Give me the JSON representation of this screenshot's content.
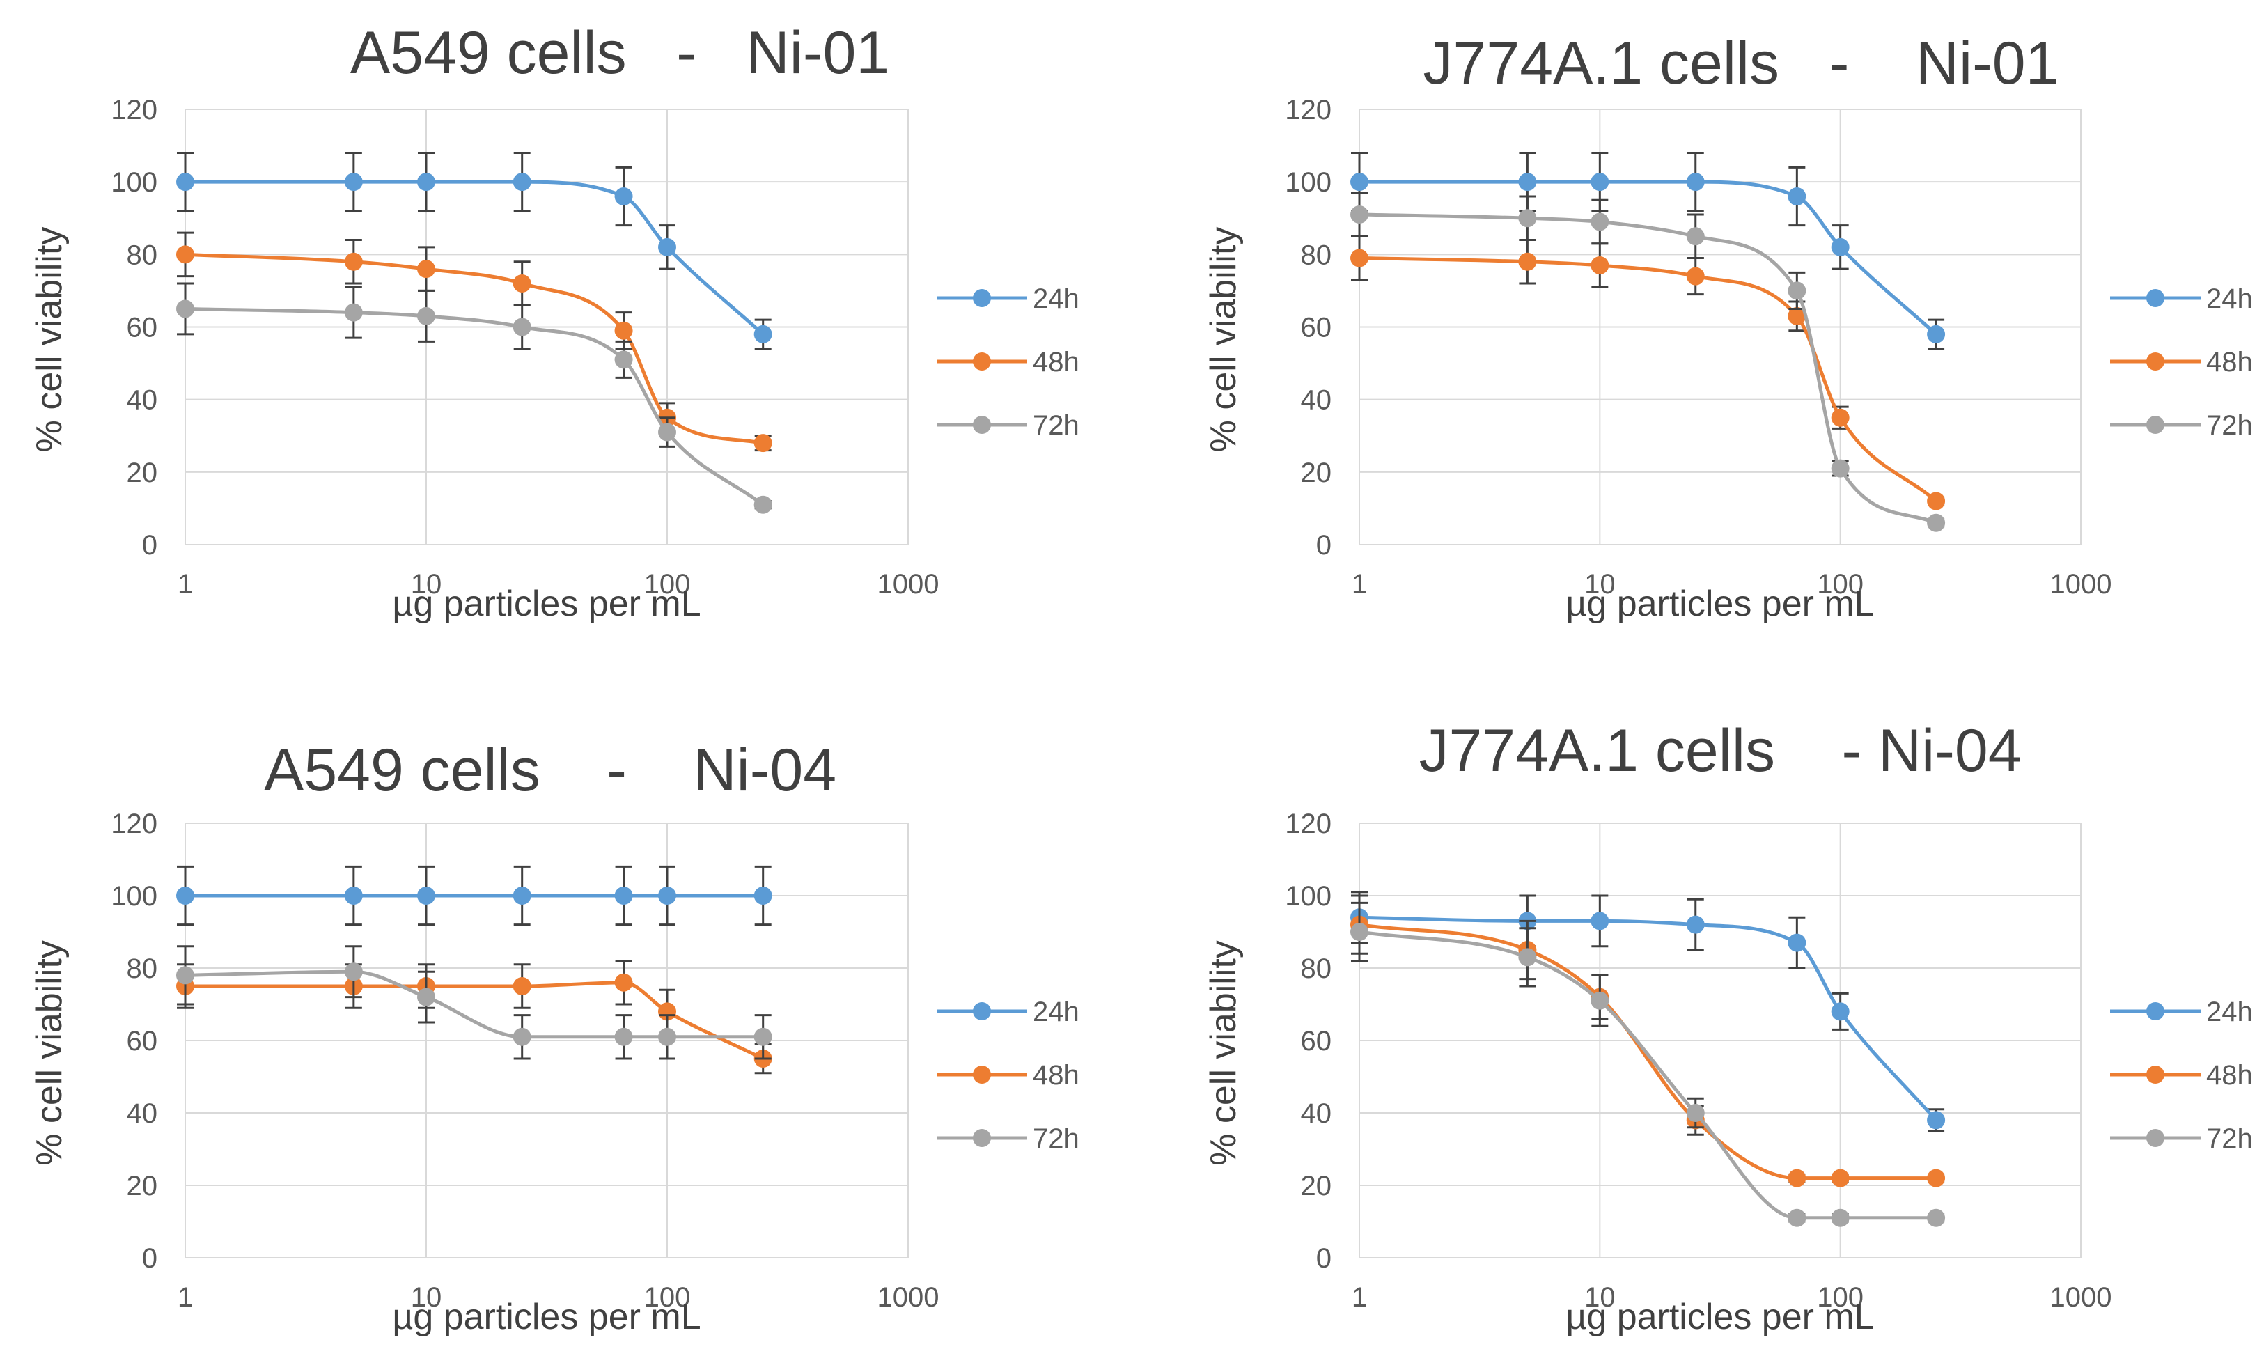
{
  "chart_data": [
    {
      "type": "line",
      "title": "A549 cells   -   Ni-01",
      "xlabel": "µg particles per mL",
      "ylabel": "% cell viability",
      "xscale": "log",
      "xlim": [
        1,
        1000
      ],
      "ylim": [
        0,
        120
      ],
      "xticks": [
        "1",
        "10",
        "100",
        "1000"
      ],
      "yticks": [
        "0",
        "20",
        "40",
        "60",
        "80",
        "100",
        "120"
      ],
      "grid": true,
      "legend": "right",
      "x": [
        1,
        5,
        10,
        25,
        66,
        100,
        250
      ],
      "series": [
        {
          "name": "24h",
          "color": "#5B9BD5",
          "values": [
            100,
            100,
            100,
            100,
            96,
            82,
            58
          ],
          "errors": [
            8,
            8,
            8,
            8,
            8,
            6,
            4
          ],
          "x": [
            1,
            5,
            10,
            25,
            66,
            100,
            250
          ]
        },
        {
          "name": "48h",
          "color": "#ED7D31",
          "values": [
            80,
            78,
            76,
            72,
            59,
            35,
            28
          ],
          "errors": [
            6,
            6,
            6,
            6,
            5,
            4,
            2
          ],
          "x": [
            1,
            5,
            10,
            25,
            66,
            100,
            250
          ]
        },
        {
          "name": "72h",
          "color": "#A5A5A5",
          "values": [
            65,
            64,
            63,
            60,
            51,
            31,
            11
          ],
          "errors": [
            7,
            7,
            7,
            6,
            5,
            4,
            1
          ],
          "x": [
            1,
            5,
            10,
            25,
            66,
            100,
            250
          ]
        }
      ]
    },
    {
      "type": "line",
      "title": "J774A.1 cells   -    Ni-01",
      "xlabel": "µg particles per mL",
      "ylabel": "% cell viability",
      "xscale": "log",
      "xlim": [
        1,
        1000
      ],
      "ylim": [
        0,
        120
      ],
      "xticks": [
        "1",
        "10",
        "100",
        "1000"
      ],
      "yticks": [
        "0",
        "20",
        "40",
        "60",
        "80",
        "100",
        "120"
      ],
      "grid": true,
      "legend": "right",
      "x": [
        1,
        5,
        10,
        25,
        66,
        100,
        250
      ],
      "series": [
        {
          "name": "24h",
          "color": "#5B9BD5",
          "values": [
            100,
            100,
            100,
            100,
            96,
            82,
            58
          ],
          "errors": [
            8,
            8,
            8,
            8,
            8,
            6,
            4
          ],
          "x": [
            1,
            5,
            10,
            25,
            66,
            100,
            250
          ]
        },
        {
          "name": "48h",
          "color": "#ED7D31",
          "values": [
            79,
            78,
            77,
            74,
            63,
            35,
            12
          ],
          "errors": [
            6,
            6,
            6,
            5,
            4,
            3,
            1
          ],
          "x": [
            1,
            5,
            10,
            25,
            66,
            100,
            250
          ]
        },
        {
          "name": "72h",
          "color": "#A5A5A5",
          "values": [
            91,
            90,
            89,
            85,
            70,
            21,
            6
          ],
          "errors": [
            6,
            6,
            6,
            6,
            5,
            2,
            1
          ],
          "x": [
            1,
            5,
            10,
            25,
            66,
            100,
            250
          ]
        }
      ]
    },
    {
      "type": "line",
      "title": "A549 cells    -    Ni-04",
      "xlabel": "µg particles per mL",
      "ylabel": "% cell viability",
      "xscale": "log",
      "xlim": [
        1,
        1000
      ],
      "ylim": [
        0,
        120
      ],
      "xticks": [
        "1",
        "10",
        "100",
        "1000"
      ],
      "yticks": [
        "0",
        "20",
        "40",
        "60",
        "80",
        "100",
        "120"
      ],
      "grid": true,
      "legend": "right",
      "x": [
        1,
        5,
        10,
        25,
        66,
        100,
        250
      ],
      "series": [
        {
          "name": "24h",
          "color": "#5B9BD5",
          "values": [
            100,
            100,
            100,
            100,
            100,
            100,
            100
          ],
          "errors": [
            8,
            8,
            8,
            8,
            8,
            8,
            8
          ],
          "x": [
            1,
            5,
            10,
            25,
            66,
            100,
            250
          ]
        },
        {
          "name": "48h",
          "color": "#ED7D31",
          "values": [
            75,
            75,
            75,
            75,
            76,
            68,
            55
          ],
          "errors": [
            6,
            6,
            6,
            6,
            6,
            6,
            4
          ],
          "x": [
            1,
            5,
            10,
            25,
            66,
            100,
            250
          ]
        },
        {
          "name": "72h",
          "color": "#A5A5A5",
          "values": [
            78,
            79,
            72,
            61,
            61,
            61,
            61
          ],
          "errors": [
            8,
            7,
            7,
            6,
            6,
            6,
            6
          ],
          "x": [
            1,
            5,
            10,
            25,
            66,
            100,
            250
          ]
        }
      ]
    },
    {
      "type": "line",
      "title": "J774A.1 cells    - Ni-04",
      "xlabel": "µg particles per mL",
      "ylabel": "% cell viability",
      "xscale": "log",
      "xlim": [
        1,
        1000
      ],
      "ylim": [
        0,
        120
      ],
      "xticks": [
        "1",
        "10",
        "100",
        "1000"
      ],
      "yticks": [
        "0",
        "20",
        "40",
        "60",
        "80",
        "100",
        "120"
      ],
      "grid": true,
      "legend": "right",
      "x": [
        1,
        5,
        10,
        25,
        66,
        100,
        250
      ],
      "series": [
        {
          "name": "24h",
          "color": "#5B9BD5",
          "values": [
            94,
            93,
            93,
            92,
            87,
            68,
            38
          ],
          "errors": [
            7,
            7,
            7,
            7,
            7,
            5,
            3
          ],
          "x": [
            1,
            5,
            10,
            25,
            66,
            100,
            250
          ]
        },
        {
          "name": "48h",
          "color": "#ED7D31",
          "values": [
            92,
            85,
            72,
            38,
            22,
            22,
            22
          ],
          "errors": [
            8,
            8,
            6,
            4,
            1,
            1,
            1
          ],
          "x": [
            1,
            5,
            10,
            25,
            66,
            100,
            250
          ]
        },
        {
          "name": "72h",
          "color": "#A5A5A5",
          "values": [
            90,
            83,
            71,
            40,
            11,
            11,
            11
          ],
          "errors": [
            8,
            8,
            7,
            4,
            1,
            1,
            1
          ],
          "x": [
            1,
            5,
            10,
            25,
            66,
            100,
            250
          ]
        }
      ]
    }
  ]
}
